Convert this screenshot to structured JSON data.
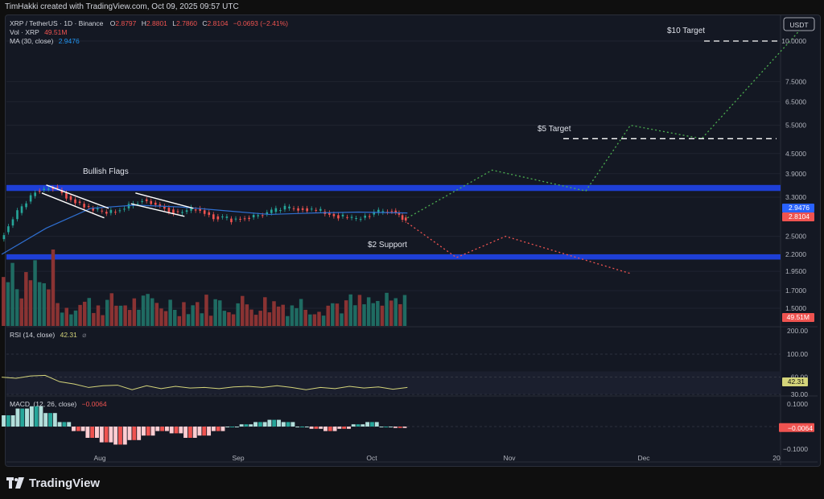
{
  "header": {
    "credit": "TimHakki created with TradingView.com, Oct 09, 2025 09:57 UTC"
  },
  "legend": {
    "symbol": "XRP / TetherUS · 1D · Binance",
    "o_label": "O",
    "o_value": "2.8797",
    "h_label": "H",
    "h_value": "2.8801",
    "l_label": "L",
    "l_value": "2.7860",
    "c_label": "C",
    "c_value": "2.8104",
    "change": "−0.0693 (−2.41%)",
    "vol_label": "Vol · XRP",
    "vol_value": "49.51M",
    "ma_label": "MA (30, close)",
    "ma_value": "2.9476"
  },
  "currency_button": "USDT",
  "annotations": {
    "bullish_flags": "Bullish Flags",
    "support": "$2 Support",
    "target5": "$5 Target",
    "target10": "$10 Target"
  },
  "rsi_legend": {
    "label": "RSI (14, close)",
    "value": "42.31"
  },
  "macd_legend": {
    "label": "MACD",
    "hidden": "(12, 26, close)",
    "value": "−0.0064"
  },
  "footer": {
    "brand": "TradingView"
  },
  "colors": {
    "up": "#26a69a",
    "down": "#ef5350",
    "ma": "#2962ff",
    "zone": "#1e3fd6",
    "rsi": "#d4d47a",
    "bull_path": "#4caf50",
    "bear_path": "#ef5350"
  },
  "chart_data": {
    "type": "line",
    "price_axis": {
      "scale": "log",
      "ticks": [
        "10.0000",
        "7.5000",
        "6.5000",
        "5.5000",
        "4.5000",
        "3.9000",
        "3.3000",
        "2.5000",
        "2.2000",
        "1.9500",
        "1.7000",
        "1.5000"
      ],
      "tick_values": [
        10.0,
        7.5,
        6.5,
        5.5,
        4.5,
        3.9,
        3.3,
        2.5,
        2.2,
        1.95,
        1.7,
        1.5
      ],
      "ma_label": "2.9476",
      "price_label": "2.8104",
      "volume_label": "49.51M",
      "top_label": "200.00"
    },
    "x_axis": {
      "ticks": [
        "Aug",
        "Sep",
        "Oct",
        "Nov",
        "Dec",
        "20"
      ]
    },
    "price_series": {
      "name": "XRP / TetherUS",
      "x": [
        "2025-07-10",
        "2025-07-14",
        "2025-07-18",
        "2025-07-22",
        "2025-07-26",
        "2025-07-30",
        "2025-08-03",
        "2025-08-07",
        "2025-08-11",
        "2025-08-15",
        "2025-08-19",
        "2025-08-23",
        "2025-08-27",
        "2025-08-31",
        "2025-09-04",
        "2025-09-08",
        "2025-09-12",
        "2025-09-16",
        "2025-09-20",
        "2025-09-24",
        "2025-09-28",
        "2025-10-02",
        "2025-10-06",
        "2025-10-09"
      ],
      "close": [
        2.45,
        2.95,
        3.45,
        3.55,
        3.25,
        3.05,
        2.95,
        3.05,
        3.25,
        3.1,
        2.95,
        3.05,
        2.88,
        2.82,
        2.86,
        2.95,
        3.05,
        3.05,
        2.98,
        2.88,
        2.82,
        2.95,
        3.0,
        2.81
      ]
    },
    "ma_series": {
      "name": "MA (30, close)",
      "x": [
        "2025-07-10",
        "2025-07-20",
        "2025-07-30",
        "2025-08-09",
        "2025-08-19",
        "2025-08-29",
        "2025-09-08",
        "2025-09-18",
        "2025-09-28",
        "2025-10-09"
      ],
      "values": [
        2.2,
        2.65,
        3.05,
        3.12,
        3.08,
        3.0,
        2.92,
        2.95,
        2.97,
        2.95
      ]
    },
    "zones": [
      {
        "name": "resistance",
        "low": 3.45,
        "high": 3.6
      },
      {
        "name": "$2 Support",
        "low": 2.12,
        "high": 2.2
      }
    ],
    "targets": [
      {
        "name": "$5 Target",
        "value": 5.0
      },
      {
        "name": "$10 Target",
        "value": 10.0
      }
    ],
    "bull_projection": {
      "x": [
        "2025-10-09",
        "2025-10-28",
        "2025-11-18",
        "2025-11-28",
        "2025-12-14",
        "2026-01-05"
      ],
      "values": [
        2.85,
        4.0,
        3.45,
        5.5,
        5.0,
        10.8
      ]
    },
    "bear_projection": {
      "x": [
        "2025-10-09",
        "2025-10-20",
        "2025-10-31",
        "2025-11-28"
      ],
      "values": [
        2.75,
        2.15,
        2.5,
        1.92
      ]
    },
    "rsi": {
      "levels": [
        "100.00",
        "60.00",
        "30.00"
      ],
      "current": "42.31",
      "values": [
        60,
        58,
        62,
        63,
        52,
        48,
        42,
        45,
        46,
        38,
        45,
        40,
        44,
        41,
        42,
        40,
        43,
        44,
        42,
        45,
        42,
        38,
        42,
        40,
        44,
        41,
        43,
        39,
        42
      ]
    },
    "macd": {
      "levels": [
        "0.1000",
        "−0.0064",
        "−0.1000"
      ],
      "histogram": [
        0.05,
        0.08,
        0.09,
        0.06,
        0.02,
        -0.02,
        -0.05,
        -0.07,
        -0.08,
        -0.06,
        -0.04,
        -0.02,
        -0.03,
        -0.05,
        -0.04,
        -0.02,
        0.0,
        0.01,
        0.02,
        0.03,
        0.02,
        0.0,
        -0.01,
        -0.02,
        -0.01,
        0.01,
        0.02,
        0.0,
        -0.006
      ]
    }
  }
}
